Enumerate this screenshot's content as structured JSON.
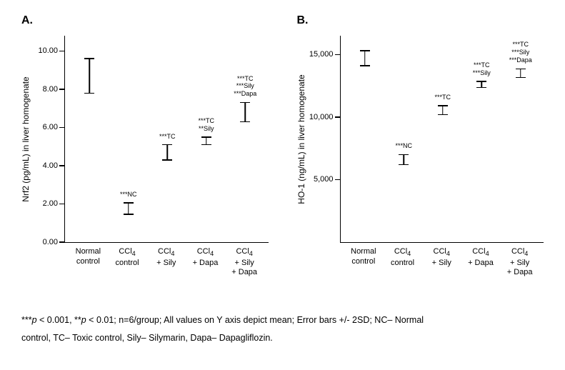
{
  "panelA": {
    "label": "A.",
    "type": "bar",
    "y_label": "Nrf2 (pg/mL) in liver homogenate",
    "ylim": [
      0,
      10.8
    ],
    "yticks": [
      0.0,
      2.0,
      4.0,
      6.0,
      8.0,
      10.0
    ],
    "tick_format": "fixed2",
    "categories": [
      [
        "Normal",
        "control"
      ],
      [
        "CCl",
        "4",
        " control"
      ],
      [
        "CCl",
        "4",
        " + Sily"
      ],
      [
        "CCl",
        "4",
        " + Dapa"
      ],
      [
        "CCl",
        "4",
        " + Sily + Dapa"
      ]
    ],
    "values": [
      8.7,
      1.75,
      4.7,
      5.3,
      6.8
    ],
    "err": [
      0.9,
      0.3,
      0.4,
      0.2,
      0.5
    ],
    "colors": [
      "#1fb89a",
      "#22d0d6",
      "#1b9be3",
      "#3c64b0",
      "#132a63"
    ],
    "annotations": [
      [],
      [
        "***NC"
      ],
      [
        "***TC"
      ],
      [
        "***TC",
        "**Sily"
      ],
      [
        "***TC",
        "***Sily",
        "***Dapa"
      ]
    ]
  },
  "panelB": {
    "label": "B.",
    "type": "bar",
    "y_label": "HO-1 (ng/mL) in liver homogenate",
    "ylim": [
      0,
      16500
    ],
    "yticks": [
      5000,
      10000,
      15000
    ],
    "tick_format": "thousands",
    "categories": [
      [
        "Normal",
        "control"
      ],
      [
        "CCl",
        "4",
        " control"
      ],
      [
        "CCl",
        "4",
        " + Sily"
      ],
      [
        "CCl",
        "4",
        " + Dapa"
      ],
      [
        "CCl",
        "4",
        " + Sily + Dapa"
      ]
    ],
    "values": [
      14700,
      6600,
      10550,
      12600,
      13500
    ],
    "err": [
      600,
      400,
      350,
      250,
      350
    ],
    "colors": [
      "#1fb89a",
      "#22d0d6",
      "#1b9be3",
      "#3c64b0",
      "#132a63"
    ],
    "annotations": [
      [],
      [
        "***NC"
      ],
      [
        "***TC"
      ],
      [
        "***TC",
        "***Sily"
      ],
      [
        "***TC",
        "***Sily",
        "***Dapa"
      ]
    ]
  },
  "footnote": {
    "line1_a": "***",
    "line1_b": " < 0.001, **",
    "line1_c": " < 0.01; n=6/group; All values on Y axis depict mean; Error bars +/- 2SD; NC– Normal",
    "line2": "control, TC– Toxic control, Sily– Silymarin,  Dapa– Dapagliflozin.",
    "p_symbol": "p"
  }
}
